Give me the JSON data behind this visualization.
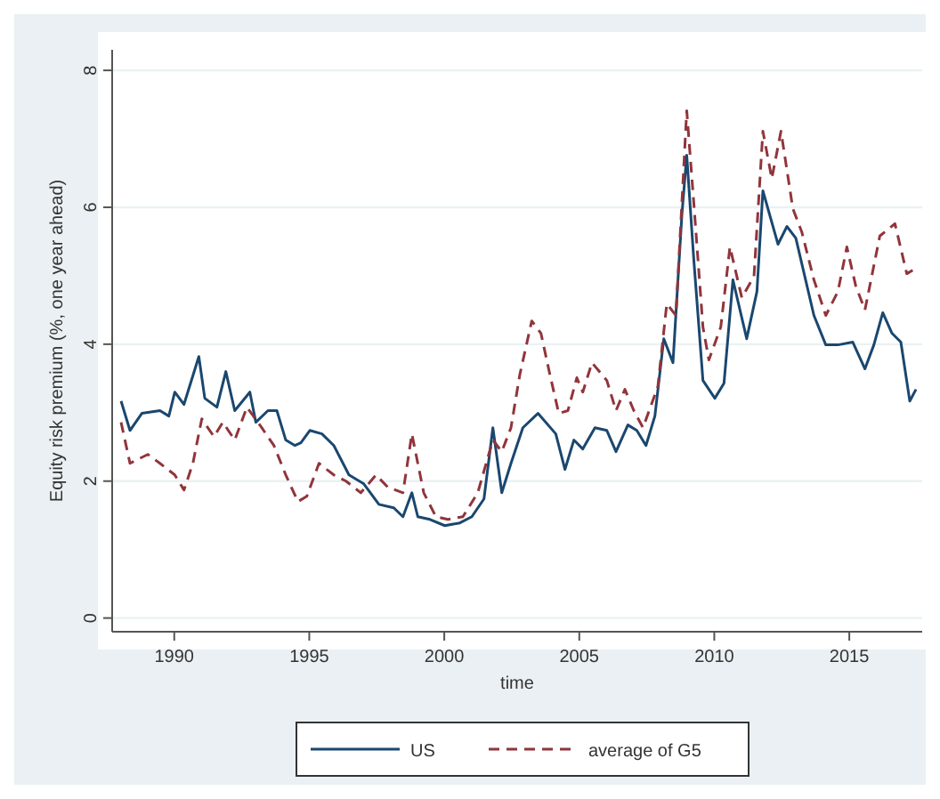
{
  "chart_data": {
    "type": "line",
    "xlabel": "time",
    "ylabel": "Equity risk premium (%, one year ahead)",
    "xlim": [
      1987.7,
      2017.7
    ],
    "ylim": [
      -0.2,
      8.3
    ],
    "xticks": [
      1990,
      1995,
      2000,
      2005,
      2010,
      2015
    ],
    "yticks": [
      0,
      2,
      4,
      6,
      8
    ],
    "grid": "y",
    "legend": "bottom",
    "series": [
      {
        "name": "US",
        "color": "#1a476f",
        "line_style": "solid",
        "x": [
          1988.03,
          1988.36,
          1988.8,
          1989.47,
          1989.8,
          1990.02,
          1990.36,
          1990.91,
          1991.13,
          1991.58,
          1991.91,
          1992.24,
          1992.8,
          1993.02,
          1993.47,
          1993.8,
          1994.13,
          1994.47,
          1994.69,
          1995.02,
          1995.47,
          1995.91,
          1996.47,
          1997.02,
          1997.58,
          1998.13,
          1998.47,
          1998.8,
          1999.02,
          1999.47,
          2000.02,
          2000.58,
          2001.02,
          2001.47,
          2001.8,
          2002.13,
          2002.47,
          2002.91,
          2003.47,
          2004.13,
          2004.47,
          2004.8,
          2005.13,
          2005.58,
          2006.02,
          2006.36,
          2006.8,
          2007.13,
          2007.47,
          2007.8,
          2008.13,
          2008.47,
          2008.8,
          2008.98,
          2009.24,
          2009.58,
          2010.02,
          2010.36,
          2010.69,
          2011.2,
          2011.58,
          2011.8,
          2012.36,
          2012.69,
          2013.02,
          2013.69,
          2014.13,
          2014.58,
          2015.13,
          2015.58,
          2015.91,
          2016.24,
          2016.58,
          2016.91,
          2017.24,
          2017.47
        ],
        "values": [
          3.17,
          2.74,
          2.99,
          3.03,
          2.95,
          3.3,
          3.12,
          3.82,
          3.21,
          3.08,
          3.6,
          3.03,
          3.3,
          2.86,
          3.03,
          3.03,
          2.6,
          2.52,
          2.56,
          2.74,
          2.69,
          2.52,
          2.09,
          1.96,
          1.66,
          1.61,
          1.48,
          1.83,
          1.48,
          1.44,
          1.35,
          1.39,
          1.48,
          1.74,
          2.78,
          1.83,
          2.26,
          2.78,
          2.99,
          2.69,
          2.17,
          2.6,
          2.47,
          2.78,
          2.74,
          2.43,
          2.82,
          2.74,
          2.52,
          2.95,
          4.08,
          3.73,
          5.89,
          6.76,
          5.24,
          3.47,
          3.21,
          3.43,
          4.94,
          4.08,
          4.77,
          6.24,
          5.46,
          5.72,
          5.55,
          4.42,
          3.99,
          3.99,
          4.03,
          3.64,
          3.99,
          4.46,
          4.16,
          4.03,
          3.17,
          3.34
        ]
      },
      {
        "name": "average of G5",
        "color": "#90353b",
        "line_style": "dashed",
        "x": [
          1988.03,
          1988.36,
          1989.02,
          1989.47,
          1990.02,
          1990.36,
          1990.69,
          1991.02,
          1991.47,
          1991.8,
          1992.24,
          1992.69,
          1993.24,
          1993.69,
          1994.13,
          1994.58,
          1994.91,
          1995.36,
          1995.91,
          1996.36,
          1996.91,
          1997.47,
          1997.91,
          1998.47,
          1998.8,
          1999.24,
          1999.69,
          2000.13,
          2000.69,
          2001.24,
          2001.8,
          2002.13,
          2002.47,
          2002.8,
          2003.24,
          2003.58,
          2003.91,
          2004.24,
          2004.58,
          2004.91,
          2005.13,
          2005.47,
          2006.02,
          2006.36,
          2006.69,
          2007.02,
          2007.36,
          2007.91,
          2008.24,
          2008.58,
          2008.98,
          2009.24,
          2009.58,
          2009.8,
          2010.24,
          2010.58,
          2011.02,
          2011.47,
          2011.8,
          2012.13,
          2012.47,
          2012.91,
          2013.24,
          2013.69,
          2014.13,
          2014.58,
          2014.91,
          2015.24,
          2015.58,
          2016.13,
          2016.69,
          2017.13,
          2017.47
        ],
        "values": [
          2.86,
          2.26,
          2.39,
          2.26,
          2.09,
          1.87,
          2.26,
          2.91,
          2.65,
          2.86,
          2.6,
          3.08,
          2.78,
          2.52,
          2.09,
          1.7,
          1.78,
          2.26,
          2.09,
          2.0,
          1.83,
          2.09,
          1.91,
          1.83,
          2.69,
          1.83,
          1.48,
          1.44,
          1.48,
          1.83,
          2.6,
          2.43,
          2.78,
          3.56,
          4.34,
          4.16,
          3.56,
          2.99,
          3.03,
          3.51,
          3.3,
          3.73,
          3.47,
          3.03,
          3.34,
          3.03,
          2.78,
          3.38,
          4.59,
          4.42,
          7.41,
          6.07,
          4.25,
          3.77,
          4.25,
          5.42,
          4.68,
          4.99,
          7.11,
          6.42,
          7.11,
          5.98,
          5.64,
          4.94,
          4.42,
          4.77,
          5.42,
          4.85,
          4.5,
          5.58,
          5.76,
          5.03,
          5.11
        ]
      }
    ]
  }
}
